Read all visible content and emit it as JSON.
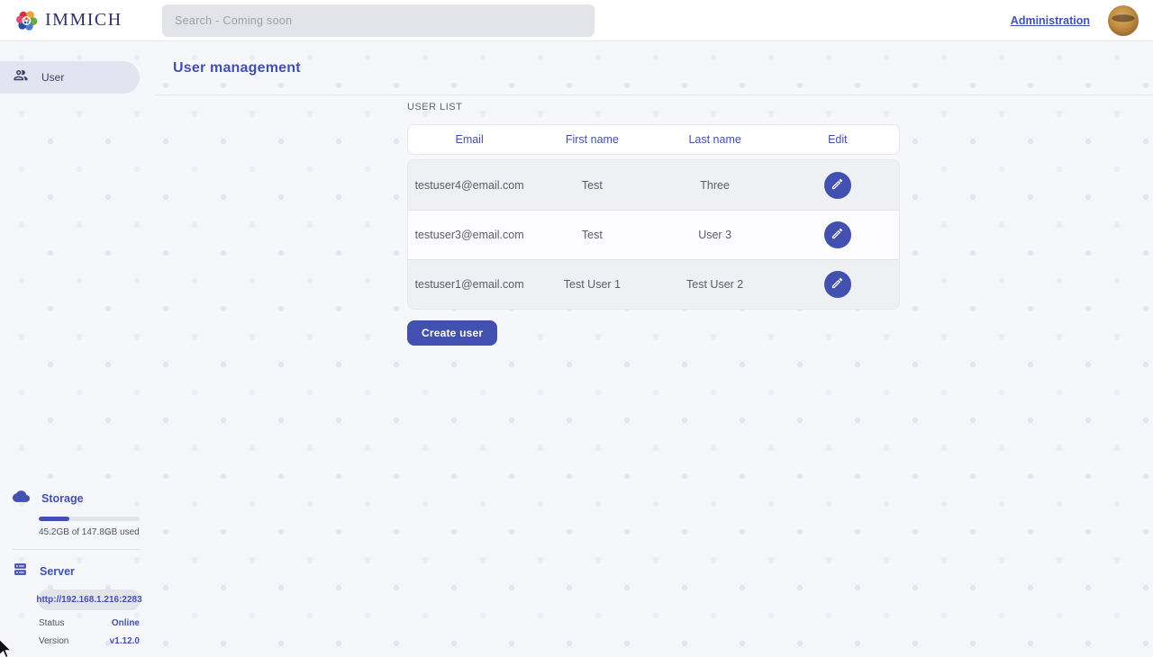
{
  "app": {
    "name": "IMMICH"
  },
  "header": {
    "search_placeholder": "Search - Coming soon",
    "admin_link": "Administration"
  },
  "sidebar": {
    "items": [
      {
        "label": "User",
        "icon": "users-icon",
        "selected": true
      }
    ],
    "storage": {
      "title": "Storage",
      "usage_text": "45.2GB of 147.8GB used",
      "percent_used": 30.6
    },
    "server": {
      "title": "Server",
      "url": "http://192.168.1.216:2283",
      "status_label": "Status",
      "status_value": "Online",
      "version_label": "Version",
      "version_value": "v1.12.0"
    }
  },
  "main": {
    "title": "User management",
    "section_label": "USER LIST",
    "table": {
      "columns": [
        "Email",
        "First name",
        "Last name",
        "Edit"
      ],
      "rows": [
        {
          "email": "testuser4@email.com",
          "first_name": "Test",
          "last_name": "Three"
        },
        {
          "email": "testuser3@email.com",
          "first_name": "Test",
          "last_name": "User 3"
        },
        {
          "email": "testuser1@email.com",
          "first_name": "Test User 1",
          "last_name": "Test User 2"
        }
      ]
    },
    "create_button": "Create user"
  },
  "colors": {
    "primary": "#4250af",
    "page_background": "#f6f7fb",
    "row_alt_background": "#eef0f4"
  }
}
